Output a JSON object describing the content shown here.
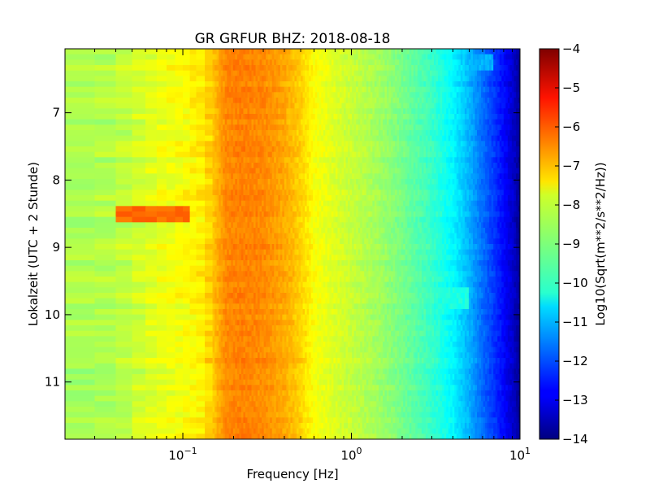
{
  "chart_data": {
    "type": "heatmap",
    "title": "GR GRFUR BHZ: 2018-08-18",
    "xlabel": "Frequency [Hz]",
    "ylabel": "Lokalzeit (UTC + 2 Stunde)",
    "x_scale": "log",
    "xlim": [
      0.02,
      10
    ],
    "ylim": [
      6.05,
      11.85
    ],
    "y_inverted": true,
    "x_ticks": [
      {
        "value": 0.1,
        "base": "10",
        "exp": "−1"
      },
      {
        "value": 1,
        "base": "10",
        "exp": "0"
      },
      {
        "value": 10,
        "base": "10",
        "exp": "1"
      }
    ],
    "y_ticks": [
      {
        "value": 7,
        "label": "7"
      },
      {
        "value": 8,
        "label": "8"
      },
      {
        "value": 9,
        "label": "9"
      },
      {
        "value": 10,
        "label": "10"
      },
      {
        "value": 11,
        "label": "11"
      }
    ],
    "colorbar": {
      "label": "Log10(Sqrt(m**2/s**2/Hz))",
      "colormap": "jet",
      "range": [
        -14,
        -4
      ],
      "ticks": [
        {
          "value": -4,
          "label": "−4"
        },
        {
          "value": -5,
          "label": "−5"
        },
        {
          "value": -6,
          "label": "−6"
        },
        {
          "value": -7,
          "label": "−7"
        },
        {
          "value": -8,
          "label": "−8"
        },
        {
          "value": -9,
          "label": "−9"
        },
        {
          "value": -10,
          "label": "−10"
        },
        {
          "value": -11,
          "label": "−11"
        },
        {
          "value": -12,
          "label": "−12"
        },
        {
          "value": -13,
          "label": "−13"
        },
        {
          "value": -14,
          "label": "−14"
        }
      ]
    },
    "spectrum_profile": {
      "freq_hz": [
        0.02,
        0.04,
        0.06,
        0.08,
        0.1,
        0.13,
        0.15,
        0.18,
        0.22,
        0.3,
        0.4,
        0.5,
        0.6,
        0.8,
        1.0,
        1.5,
        2.0,
        3.0,
        4.0,
        5.0,
        6.0,
        7.0,
        8.0,
        9.0,
        10.0
      ],
      "log10_amplitude": [
        -8.6,
        -8.5,
        -8.1,
        -7.9,
        -7.8,
        -7.6,
        -7.2,
        -6.6,
        -6.5,
        -6.6,
        -6.9,
        -7.3,
        -7.8,
        -8.1,
        -8.3,
        -8.7,
        -9.1,
        -9.7,
        -10.3,
        -11.0,
        -11.7,
        -12.2,
        -12.7,
        -13.2,
        -13.8
      ]
    },
    "events": [
      {
        "time": 8.5,
        "freq_min": 0.04,
        "freq_max": 0.11,
        "log10_amplitude": -6.3
      },
      {
        "time": 9.78,
        "freq_min": 3.0,
        "freq_max": 5.0,
        "log10_amplitude": -10.0
      },
      {
        "time": 6.25,
        "freq_min": 4.0,
        "freq_max": 7.0,
        "log10_amplitude": -11.0
      }
    ]
  }
}
